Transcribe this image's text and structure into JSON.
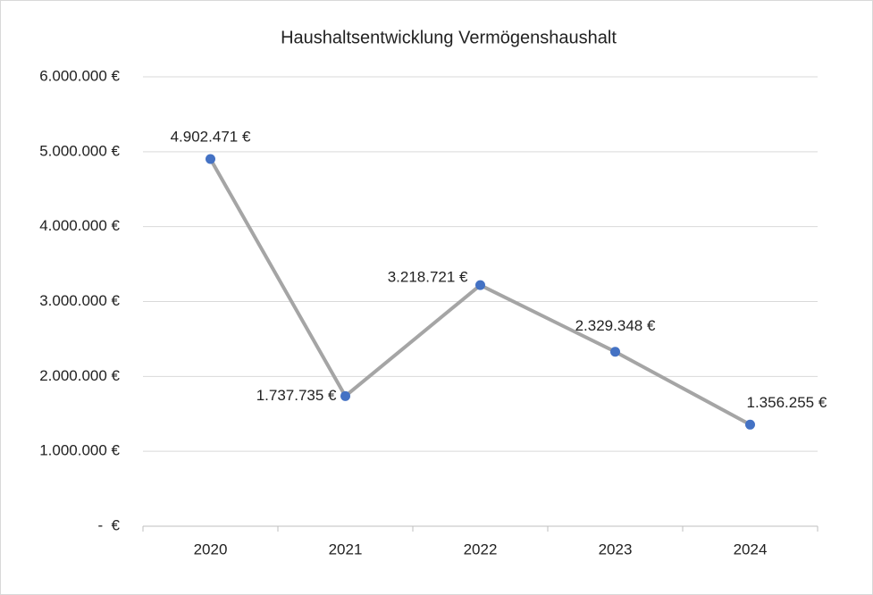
{
  "chart_data": {
    "type": "line",
    "title": "Haushaltsentwicklung Vermögenshaushalt",
    "categories": [
      "2020",
      "2021",
      "2022",
      "2023",
      "2024"
    ],
    "series": [
      {
        "name": "Vermögenshaushalt",
        "color": "#a5a5a5",
        "marker_color": "#4472c4",
        "values": [
          4902471,
          1737735,
          3218721,
          2329348,
          1356255
        ],
        "value_labels": [
          "4.902.471 €",
          "1.737.735 €",
          "3.218.721 €",
          "2.329.348 €",
          "1.356.255 €"
        ]
      }
    ],
    "ylim": [
      0,
      6000000
    ],
    "yticks": [
      {
        "value": 0,
        "label": "-  €"
      },
      {
        "value": 1000000,
        "label": "1.000.000 €"
      },
      {
        "value": 2000000,
        "label": "2.000.000 €"
      },
      {
        "value": 3000000,
        "label": "3.000.000 €"
      },
      {
        "value": 4000000,
        "label": "4.000.000 €"
      },
      {
        "value": 5000000,
        "label": "5.000.000 €"
      },
      {
        "value": 6000000,
        "label": "6.000.000 €"
      }
    ],
    "grid": true
  }
}
